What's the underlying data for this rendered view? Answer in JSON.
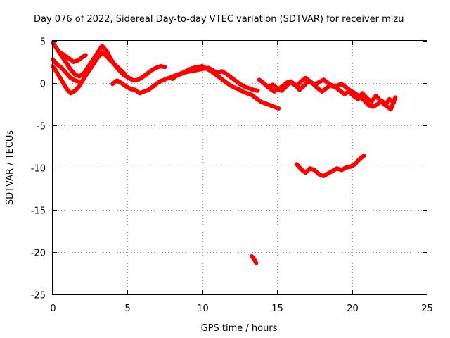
{
  "chart_data": {
    "type": "line",
    "title": "Day 076 of 2022, Sidereal Day-to-day VTEC variation (SDTVAR) for receiver mizu",
    "xlabel": "GPS time / hours",
    "ylabel": "SDTVAR / TECUs",
    "xlim": [
      0,
      25
    ],
    "ylim": [
      -25,
      5
    ],
    "xticks": [
      0,
      5,
      10,
      15,
      20,
      25
    ],
    "yticks": [
      -25,
      -20,
      -15,
      -10,
      -5,
      0,
      5
    ],
    "xtick_labels": [
      "0",
      "5",
      "10",
      "15",
      "20",
      "25"
    ],
    "ytick_labels": [
      "-25",
      "-20",
      "-15",
      "-10",
      "-5",
      "0",
      "5"
    ],
    "grid": true,
    "color": "#ff0000",
    "series": [
      {
        "name": "s1",
        "x": [
          0.0,
          0.3,
          0.6,
          0.9,
          1.2,
          1.5,
          1.8,
          2.1,
          2.4,
          2.7,
          3.0,
          3.3,
          3.6,
          3.9,
          4.2,
          4.5,
          4.8
        ],
        "y": [
          2.0,
          1.2,
          0.3,
          -0.6,
          -1.2,
          -0.9,
          -0.3,
          0.6,
          1.4,
          2.2,
          3.0,
          3.6,
          3.2,
          2.6,
          2.1,
          1.6,
          1.1
        ]
      },
      {
        "name": "s2",
        "x": [
          0.0,
          0.3,
          0.6,
          0.9,
          1.2,
          1.5,
          1.7
        ],
        "y": [
          2.8,
          2.2,
          1.8,
          1.2,
          0.6,
          0.3,
          0.2
        ]
      },
      {
        "name": "s3",
        "x": [
          0.0,
          0.3,
          0.6,
          0.9,
          1.2,
          1.5,
          1.8,
          2.1,
          2.4,
          2.7,
          3.0,
          3.3,
          3.6,
          3.9,
          4.2,
          4.5,
          4.8,
          5.1,
          5.4,
          5.7,
          6.0,
          6.3,
          6.6,
          6.9,
          7.2,
          7.5
        ],
        "y": [
          4.8,
          4.0,
          3.2,
          2.4,
          1.6,
          1.0,
          0.8,
          1.2,
          2.0,
          2.8,
          3.6,
          4.4,
          3.8,
          2.8,
          2.0,
          1.4,
          0.9,
          0.6,
          0.3,
          0.4,
          0.7,
          1.1,
          1.5,
          1.8,
          2.0,
          1.9
        ]
      },
      {
        "name": "s4",
        "x": [
          0.5,
          0.8,
          1.1,
          1.4,
          1.7,
          2.0,
          2.2
        ],
        "y": [
          3.6,
          3.3,
          2.9,
          2.5,
          2.7,
          3.1,
          3.3
        ]
      },
      {
        "name": "s5",
        "x": [
          4.0,
          4.3,
          4.6,
          4.9,
          5.2,
          5.5,
          5.8,
          6.1,
          6.4,
          6.7,
          7.0,
          7.3,
          7.6,
          7.9,
          8.2,
          8.5,
          8.8,
          9.1,
          9.4,
          9.7,
          10.0,
          10.3,
          10.6,
          10.9,
          11.2,
          11.5,
          11.8,
          12.1,
          12.4,
          12.7,
          13.0,
          13.3,
          13.6,
          13.9,
          14.2,
          14.5,
          14.8,
          15.1
        ],
        "y": [
          -0.1,
          0.3,
          0.0,
          -0.4,
          -0.7,
          -0.8,
          -1.2,
          -1.0,
          -0.8,
          -0.4,
          0.0,
          0.3,
          0.5,
          0.7,
          0.9,
          1.1,
          1.3,
          1.6,
          1.8,
          1.9,
          2.0,
          1.7,
          1.4,
          1.0,
          0.6,
          0.2,
          -0.2,
          -0.5,
          -0.7,
          -1.0,
          -1.2,
          -1.4,
          -1.8,
          -2.2,
          -2.4,
          -2.6,
          -2.8,
          -3.0
        ]
      },
      {
        "name": "s6",
        "x": [
          8.0,
          8.3,
          8.6,
          8.9,
          9.2,
          9.5,
          9.8,
          10.1,
          10.4,
          10.7,
          11.0,
          11.3,
          11.6,
          11.9,
          12.2,
          12.5,
          12.8,
          13.1,
          13.4,
          13.7
        ],
        "y": [
          0.5,
          0.9,
          1.1,
          1.3,
          1.4,
          1.5,
          1.6,
          1.7,
          1.8,
          1.5,
          1.2,
          1.4,
          1.1,
          0.7,
          0.3,
          -0.1,
          -0.4,
          -0.6,
          -0.8,
          -0.9
        ]
      },
      {
        "name": "s7",
        "x": [
          13.8,
          14.1,
          14.4,
          14.7,
          15.0,
          15.3,
          15.6,
          15.9,
          16.2,
          16.5,
          16.8,
          17.1,
          17.4,
          17.7,
          18.0,
          18.3,
          18.6,
          18.9,
          19.2,
          19.5,
          19.8,
          20.1,
          20.4,
          20.7,
          21.0,
          21.3,
          21.6,
          21.9,
          22.2,
          22.5,
          22.8
        ],
        "y": [
          0.4,
          0.0,
          -0.5,
          -0.2,
          -0.6,
          -0.9,
          -0.4,
          0.2,
          -0.2,
          -0.8,
          -0.3,
          0.3,
          -0.1,
          -0.6,
          -1.0,
          -0.6,
          -0.2,
          -0.5,
          -0.9,
          -1.3,
          -1.0,
          -1.5,
          -1.9,
          -1.2,
          -1.8,
          -2.2,
          -1.5,
          -2.1,
          -2.6,
          -1.9,
          -2.3
        ]
      },
      {
        "name": "s8",
        "x": [
          14.5,
          14.8,
          15.1,
          15.4,
          15.7,
          16.0,
          16.3,
          16.6,
          16.9,
          17.2,
          17.5,
          17.8,
          18.1,
          18.4,
          18.7,
          19.0,
          19.3,
          19.6,
          19.9,
          20.2,
          20.5,
          20.8,
          21.1,
          21.4,
          21.7,
          22.0,
          22.3,
          22.6,
          22.9
        ],
        "y": [
          -0.6,
          -1.0,
          -0.7,
          -0.3,
          0.1,
          0.0,
          -0.4,
          0.2,
          0.6,
          0.2,
          -0.2,
          0.1,
          0.4,
          0.0,
          -0.4,
          -0.3,
          -0.1,
          -0.5,
          -0.9,
          -1.2,
          -1.6,
          -2.0,
          -2.6,
          -2.8,
          -2.5,
          -2.1,
          -2.7,
          -3.1,
          -1.7
        ]
      },
      {
        "name": "s9",
        "x": [
          16.3,
          16.6,
          16.9,
          17.2,
          17.5,
          17.8,
          18.1,
          18.4,
          18.7,
          19.0,
          19.3,
          19.6,
          19.9,
          20.2,
          20.5,
          20.8
        ],
        "y": [
          -9.6,
          -10.2,
          -10.6,
          -10.1,
          -10.3,
          -10.8,
          -11.0,
          -10.7,
          -10.4,
          -10.1,
          -10.3,
          -10.0,
          -9.9,
          -9.6,
          -9.0,
          -8.6
        ]
      },
      {
        "name": "s10",
        "x": [
          13.3,
          13.45,
          13.6
        ],
        "y": [
          -20.5,
          -20.8,
          -21.3
        ]
      }
    ]
  }
}
